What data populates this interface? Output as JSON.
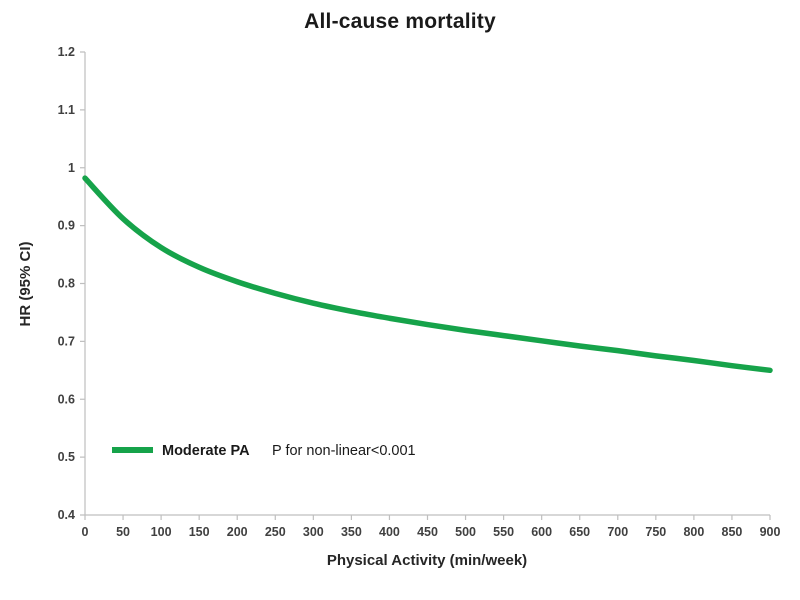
{
  "chart_data": {
    "type": "line",
    "title": "All-cause mortality",
    "xlabel": "Physical Activity (min/week)",
    "ylabel": "HR (95% CI)",
    "xlim": [
      0,
      900
    ],
    "ylim": [
      0.4,
      1.2
    ],
    "x_ticks": [
      0,
      50,
      100,
      150,
      200,
      250,
      300,
      350,
      400,
      450,
      500,
      550,
      600,
      650,
      700,
      750,
      800,
      850,
      900
    ],
    "y_ticks": [
      "0.4",
      "0.5",
      "0.6",
      "0.7",
      "0.8",
      "0.9",
      "1",
      "1.1",
      "1.2"
    ],
    "grid": false,
    "legend_position": "inside-bottom-left",
    "annotation": "P for non-linear<0.001",
    "series": [
      {
        "name": "Moderate PA",
        "color": "#16a34a",
        "x": [
          0,
          50,
          100,
          150,
          200,
          250,
          300,
          350,
          400,
          450,
          500,
          550,
          600,
          650,
          700,
          750,
          800,
          850,
          900
        ],
        "y": [
          0.982,
          0.912,
          0.862,
          0.828,
          0.803,
          0.783,
          0.766,
          0.752,
          0.74,
          0.729,
          0.719,
          0.71,
          0.701,
          0.692,
          0.684,
          0.675,
          0.667,
          0.658,
          0.65
        ]
      }
    ]
  },
  "colors": {
    "axis_line": "#bfbfbf",
    "tick_text": "#404040",
    "title_text": "#1a1a1a"
  }
}
